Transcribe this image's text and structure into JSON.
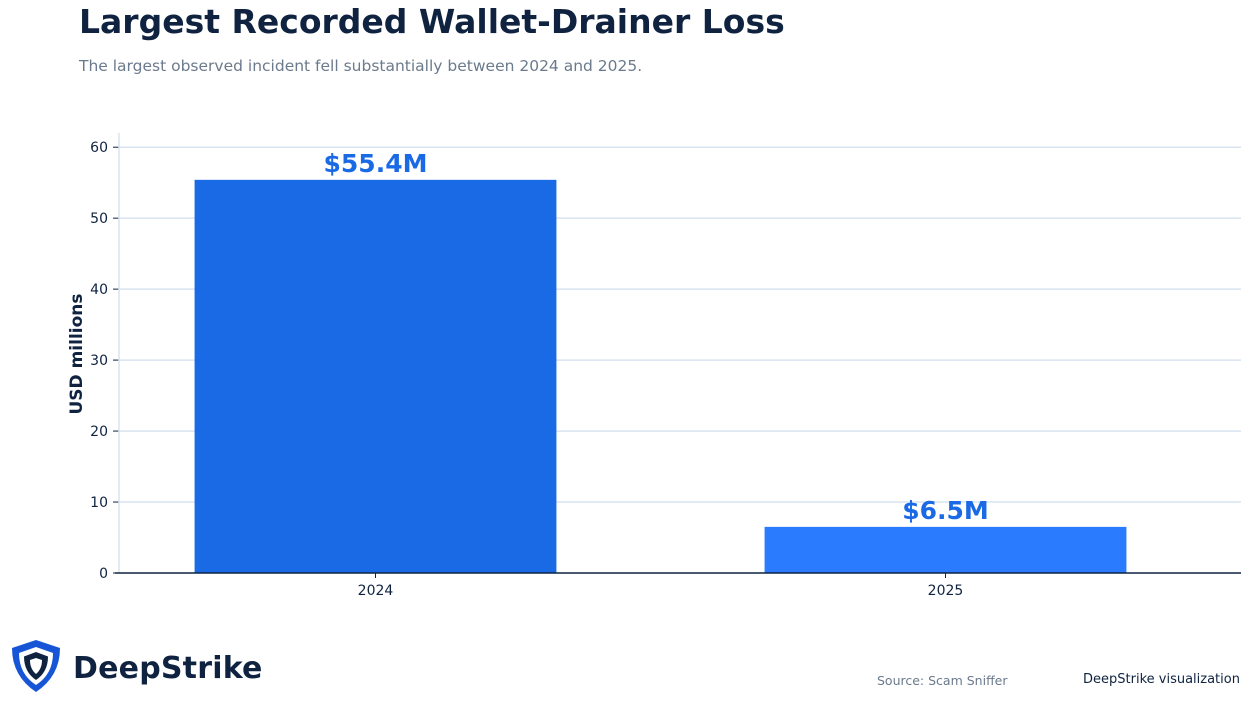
{
  "header": {
    "title": "Largest Recorded Wallet-Drainer Loss",
    "subtitle": "The largest observed incident fell substantially between 2024 and 2025."
  },
  "chart_data": {
    "type": "bar",
    "categories": [
      "2024",
      "2025"
    ],
    "values": [
      55.4,
      6.5
    ],
    "value_labels": [
      "$55.4M",
      "$6.5M"
    ],
    "ylabel": "USD millions",
    "ylim": [
      0,
      62
    ],
    "yticks": [
      0,
      10,
      20,
      30,
      40,
      50,
      60
    ],
    "grid": true,
    "colors": [
      "#1a6ae6",
      "#2b7bff"
    ],
    "label_color": "#1a6ae6"
  },
  "footer": {
    "brand": "DeepStrike",
    "source": "Source: Scam Sniffer",
    "credit": "DeepStrike visualization"
  },
  "icons": {
    "logo": "shield-logo-icon"
  }
}
